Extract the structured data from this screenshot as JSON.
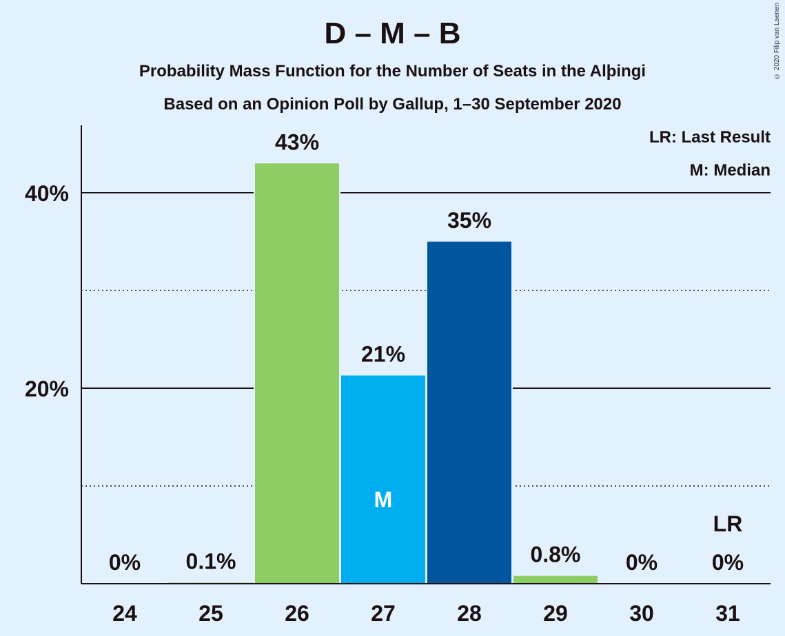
{
  "header": {
    "title": "D – M – B",
    "subtitle1": "Probability Mass Function for the Number of Seats in the Alþingi",
    "subtitle2": "Based on an Opinion Poll by Gallup, 1–30 September 2020",
    "copyright": "© 2020 Filip van Laenen"
  },
  "legend": {
    "last_result": "LR: Last Result",
    "median": "M: Median"
  },
  "chart_data": {
    "type": "bar",
    "title": "D – M – B",
    "xlabel": "",
    "ylabel": "",
    "categories": [
      "24",
      "25",
      "26",
      "27",
      "28",
      "29",
      "30",
      "31"
    ],
    "values": [
      0,
      0.1,
      43,
      21.3,
      35,
      0.8,
      0,
      0
    ],
    "data_labels": [
      "0%",
      "0.1%",
      "43%",
      "21%",
      "35%",
      "0.8%",
      "0%",
      "0%"
    ],
    "bar_colors": [
      "#8ecd64",
      "#8ecd64",
      "#8ecd64",
      "#00aeef",
      "#00569e",
      "#8ecd64",
      "#8ecd64",
      "#8ecd64"
    ],
    "ylim": [
      0,
      47
    ],
    "yticks": [
      20,
      40
    ],
    "ytick_labels": [
      "20%",
      "40%"
    ],
    "minor_gridlines": [
      10,
      30
    ],
    "grid": true,
    "legend_position": "top-right",
    "median_category": "27",
    "median_marker": "M",
    "last_result_category": "31",
    "last_result_marker": "LR"
  }
}
